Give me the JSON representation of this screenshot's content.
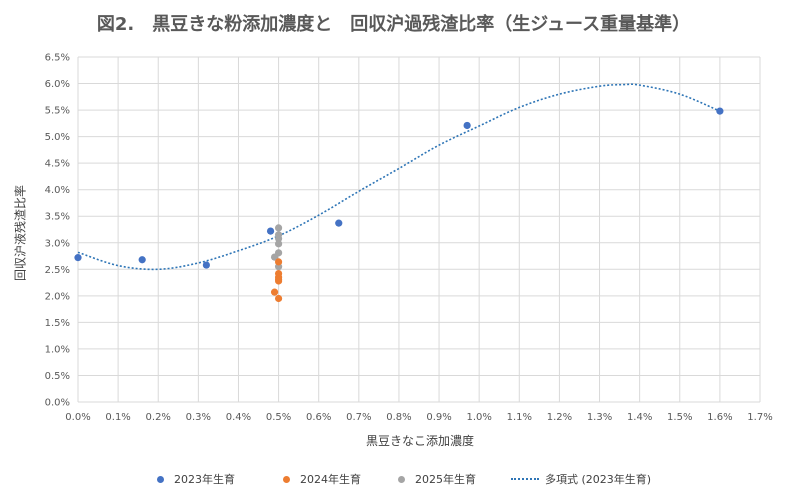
{
  "chart_data": {
    "type": "scatter",
    "title": "図2.　黒豆きな粉添加濃度と　回収沪過残渣比率（生ジュース重量基準）",
    "xlabel": "黒豆きなこ添加濃度",
    "ylabel": "回収沪液残渣比率",
    "xlim": [
      0,
      0.017
    ],
    "ylim": [
      0,
      0.065
    ],
    "x_ticks": [
      "0.0%",
      "0.1%",
      "0.2%",
      "0.3%",
      "0.4%",
      "0.5%",
      "0.6%",
      "0.7%",
      "0.8%",
      "0.9%",
      "1.0%",
      "1.1%",
      "1.2%",
      "1.3%",
      "1.4%",
      "1.5%",
      "1.6%",
      "1.7%"
    ],
    "y_ticks": [
      "0.0%",
      "0.5%",
      "1.0%",
      "1.5%",
      "2.0%",
      "2.5%",
      "3.0%",
      "3.5%",
      "4.0%",
      "4.5%",
      "5.0%",
      "5.5%",
      "6.0%",
      "6.5%"
    ],
    "grid": true,
    "legend_position": "bottom",
    "series": [
      {
        "name": "2023年生育",
        "color": "#4472c4",
        "points": [
          [
            0.0,
            0.0272
          ],
          [
            0.0016,
            0.0268
          ],
          [
            0.0032,
            0.0258
          ],
          [
            0.0048,
            0.0322
          ],
          [
            0.0065,
            0.0337
          ],
          [
            0.0097,
            0.0521
          ],
          [
            0.016,
            0.0548
          ]
        ]
      },
      {
        "name": "2024年生育",
        "color": "#ed7d31",
        "points": [
          [
            0.005,
            0.0264
          ],
          [
            0.005,
            0.0242
          ],
          [
            0.005,
            0.0235
          ],
          [
            0.005,
            0.0231
          ],
          [
            0.005,
            0.0228
          ],
          [
            0.0049,
            0.0207
          ],
          [
            0.005,
            0.0195
          ]
        ]
      },
      {
        "name": "2025年生育",
        "color": "#a5a5a5",
        "points": [
          [
            0.005,
            0.0328
          ],
          [
            0.005,
            0.0315
          ],
          [
            0.005,
            0.0308
          ],
          [
            0.005,
            0.0298
          ],
          [
            0.005,
            0.0281
          ],
          [
            0.0049,
            0.0273
          ],
          [
            0.005,
            0.0255
          ]
        ]
      }
    ],
    "trendline": {
      "name": "多項式 (2023年生育)",
      "color": "#2e75b6",
      "x": [
        0.0,
        0.001,
        0.002,
        0.003,
        0.004,
        0.005,
        0.006,
        0.007,
        0.008,
        0.009,
        0.01,
        0.011,
        0.012,
        0.013,
        0.0136,
        0.014,
        0.015,
        0.016
      ],
      "y": [
        0.0282,
        0.0257,
        0.025,
        0.0262,
        0.0285,
        0.0313,
        0.0352,
        0.0397,
        0.044,
        0.0484,
        0.052,
        0.0555,
        0.058,
        0.0595,
        0.0598,
        0.0597,
        0.058,
        0.0548
      ]
    }
  }
}
